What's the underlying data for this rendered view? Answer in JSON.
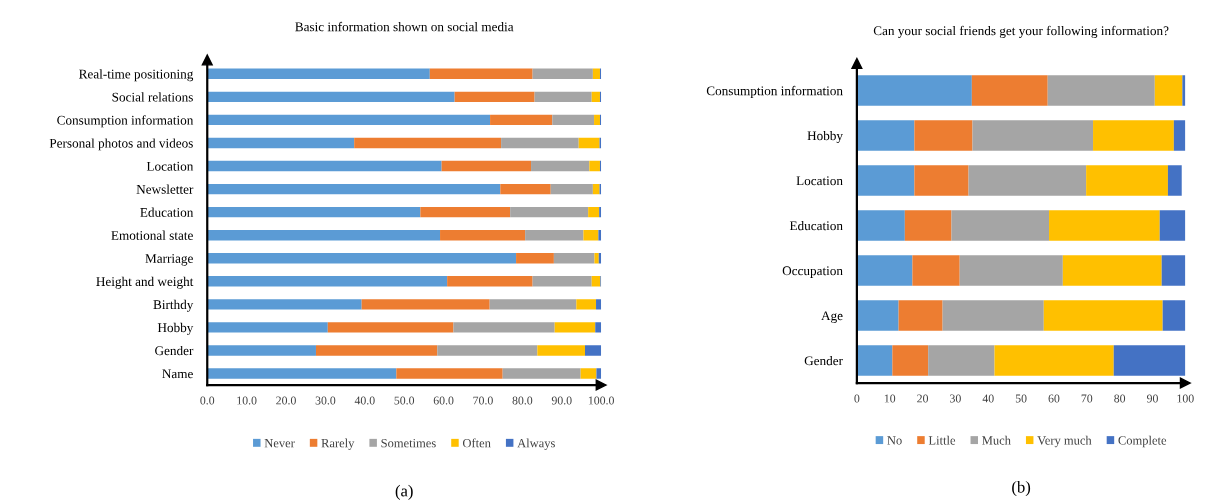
{
  "chart_data": [
    {
      "type": "bar",
      "orientation": "horizontal",
      "stacked": true,
      "title": "Basic information shown on social media",
      "categories": [
        "Real-time positioning",
        "Social relations",
        "Consumption information",
        "Personal photos and videos",
        "Location",
        "Newsletter",
        "Education",
        "Emotional state",
        "Marriage",
        "Height and weight",
        "Birthdy",
        "Hobby",
        "Gender",
        "Name"
      ],
      "series": [
        {
          "name": "Never",
          "color": "#5b9bd5",
          "values": [
            56.5,
            62.8,
            71.8,
            37.3,
            59.5,
            74.4,
            54.1,
            59.1,
            78.4,
            60.9,
            39.2,
            30.6,
            27.6,
            48.0
          ]
        },
        {
          "name": "Rarely",
          "color": "#ed7d31",
          "values": [
            26.1,
            20.3,
            15.8,
            37.3,
            22.7,
            12.8,
            22.8,
            21.6,
            9.6,
            21.7,
            32.5,
            31.9,
            30.8,
            27.0
          ]
        },
        {
          "name": "Sometimes",
          "color": "#a5a5a5",
          "values": [
            15.3,
            14.5,
            10.6,
            19.7,
            14.8,
            10.7,
            19.8,
            14.8,
            10.3,
            15.0,
            22.0,
            25.7,
            25.4,
            19.8
          ]
        },
        {
          "name": "Often",
          "color": "#ffc000",
          "values": [
            1.8,
            2.1,
            1.5,
            5.3,
            2.7,
            1.7,
            2.8,
            3.8,
            1.1,
            2.2,
            5.0,
            10.3,
            12.1,
            4.0
          ]
        },
        {
          "name": "Always",
          "color": "#4472c4",
          "values": [
            0.3,
            0.3,
            0.3,
            0.4,
            0.3,
            0.4,
            0.5,
            0.7,
            0.6,
            0.2,
            1.3,
            1.5,
            4.1,
            1.2
          ]
        }
      ],
      "xlim": [
        0,
        100
      ],
      "xticks": [
        {
          "value": 0,
          "label": "0.0"
        },
        {
          "value": 10,
          "label": "10.0"
        },
        {
          "value": 20,
          "label": "20.0"
        },
        {
          "value": 30,
          "label": "30.0"
        },
        {
          "value": 40,
          "label": "40.0"
        },
        {
          "value": 50,
          "label": "50.0"
        },
        {
          "value": 60,
          "label": "60.0"
        },
        {
          "value": 70,
          "label": "70.0"
        },
        {
          "value": 80,
          "label": "80.0"
        },
        {
          "value": 90,
          "label": "90.0"
        },
        {
          "value": 100,
          "label": "100.0"
        }
      ],
      "grid": false,
      "legend": "bottom",
      "annotations": [
        "(a)"
      ]
    },
    {
      "type": "bar",
      "orientation": "horizontal",
      "stacked": true,
      "title": "Can your social friends get your following information?",
      "categories": [
        "Consumption information",
        "Hobby",
        "Location",
        "Education",
        "Occupation",
        "Age",
        "Gender"
      ],
      "series": [
        {
          "name": "No",
          "color": "#5b9bd5",
          "values": [
            35.0,
            17.5,
            17.5,
            14.6,
            16.9,
            12.7,
            10.8
          ]
        },
        {
          "name": "Little",
          "color": "#ed7d31",
          "values": [
            23.1,
            17.7,
            16.5,
            14.2,
            14.4,
            13.4,
            10.9
          ]
        },
        {
          "name": "Much",
          "color": "#a5a5a5",
          "values": [
            32.6,
            36.7,
            35.8,
            29.7,
            31.4,
            30.8,
            20.2
          ]
        },
        {
          "name": "Very much",
          "color": "#ffc000",
          "values": [
            8.4,
            24.6,
            24.9,
            33.7,
            30.1,
            36.2,
            36.3
          ]
        },
        {
          "name": "Complete",
          "color": "#4472c4",
          "values": [
            0.9,
            3.5,
            4.2,
            7.8,
            7.2,
            6.9,
            21.8
          ]
        }
      ],
      "xlim": [
        0,
        100
      ],
      "xticks": [
        0,
        10,
        20,
        30,
        40,
        50,
        60,
        70,
        80,
        90,
        100
      ],
      "grid": false,
      "legend": "bottom",
      "annotations": [
        "(b)"
      ]
    }
  ]
}
